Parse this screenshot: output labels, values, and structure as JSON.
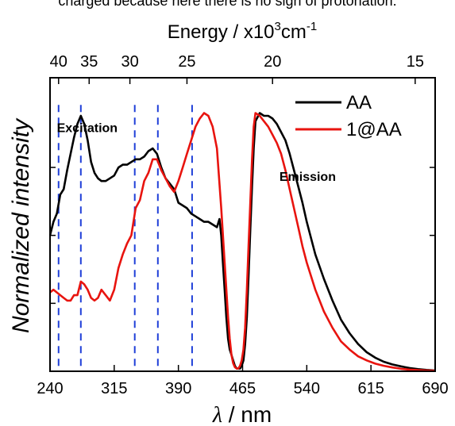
{
  "caption": "charged because here there is no sign of protonation.",
  "chart_data": {
    "type": "line",
    "xlabel_symbol": "λ",
    "xlabel_unit": " / nm",
    "ylabel": "Normalized intensity",
    "top_xlabel": "Energy / x10",
    "top_xlabel_sup1": "3",
    "top_xlabel_unit": "cm",
    "top_xlabel_sup2": "-1",
    "xlim": [
      240,
      690
    ],
    "ylim": [
      0,
      1.08
    ],
    "x_ticks": [
      240,
      315,
      390,
      465,
      540,
      615,
      690
    ],
    "top_ticks": [
      40,
      35,
      30,
      25,
      20,
      15
    ],
    "y_tick_positions": [
      0.25,
      0.5,
      0.75
    ],
    "grid": false,
    "legend_position": "top-right",
    "annotations": [
      {
        "text": "Excitation",
        "x": 248,
        "y": 0.88
      },
      {
        "text": "Emission",
        "x": 508,
        "y": 0.7
      }
    ],
    "dashed_lines_x": [
      250,
      276,
      339,
      366,
      406
    ],
    "dashed_color": "#1f3fd8",
    "series": [
      {
        "name": "AA",
        "color": "#000000",
        "x": [
          240,
          244,
          248,
          252,
          256,
          260,
          264,
          268,
          272,
          276,
          280,
          284,
          288,
          292,
          296,
          300,
          305,
          310,
          315,
          320,
          325,
          330,
          335,
          340,
          345,
          350,
          355,
          360,
          365,
          370,
          375,
          380,
          385,
          390,
          395,
          400,
          405,
          410,
          415,
          420,
          425,
          430,
          435,
          438,
          440,
          442,
          444,
          446,
          448,
          450,
          452,
          454,
          456,
          458,
          460,
          462,
          464,
          466,
          468,
          470,
          472,
          474,
          476,
          478,
          480,
          485,
          490,
          495,
          500,
          505,
          510,
          515,
          520,
          525,
          530,
          535,
          540,
          550,
          560,
          570,
          580,
          590,
          600,
          610,
          620,
          630,
          640,
          650,
          660,
          670,
          680,
          690
        ],
        "y": [
          0.5,
          0.55,
          0.58,
          0.65,
          0.67,
          0.74,
          0.8,
          0.86,
          0.91,
          0.94,
          0.91,
          0.85,
          0.77,
          0.73,
          0.71,
          0.7,
          0.7,
          0.71,
          0.72,
          0.75,
          0.76,
          0.76,
          0.77,
          0.78,
          0.78,
          0.79,
          0.81,
          0.82,
          0.8,
          0.75,
          0.71,
          0.69,
          0.67,
          0.62,
          0.61,
          0.6,
          0.58,
          0.57,
          0.56,
          0.55,
          0.55,
          0.54,
          0.53,
          0.56,
          0.5,
          0.4,
          0.3,
          0.2,
          0.12,
          0.08,
          0.06,
          0.04,
          0.02,
          0.01,
          0.01,
          0.01,
          0.02,
          0.04,
          0.1,
          0.2,
          0.35,
          0.52,
          0.68,
          0.82,
          0.92,
          0.95,
          0.94,
          0.94,
          0.93,
          0.91,
          0.88,
          0.85,
          0.8,
          0.74,
          0.68,
          0.62,
          0.55,
          0.43,
          0.34,
          0.26,
          0.19,
          0.14,
          0.1,
          0.07,
          0.05,
          0.035,
          0.025,
          0.018,
          0.012,
          0.008,
          0.005,
          0.003
        ]
      },
      {
        "name": "1@AA",
        "color": "#e8140f",
        "x": [
          240,
          244,
          248,
          252,
          256,
          260,
          264,
          268,
          272,
          276,
          280,
          284,
          288,
          292,
          296,
          300,
          305,
          310,
          315,
          320,
          325,
          330,
          335,
          340,
          345,
          350,
          355,
          360,
          365,
          370,
          375,
          380,
          385,
          390,
          395,
          400,
          405,
          410,
          415,
          420,
          425,
          430,
          435,
          440,
          444,
          448,
          450,
          452,
          454,
          456,
          458,
          460,
          462,
          464,
          466,
          468,
          470,
          472,
          474,
          476,
          478,
          480,
          485,
          490,
          495,
          500,
          505,
          510,
          515,
          520,
          525,
          530,
          535,
          540,
          550,
          560,
          570,
          580,
          590,
          600,
          610,
          620,
          630,
          640,
          650,
          660,
          670,
          680,
          690
        ],
        "y": [
          0.29,
          0.3,
          0.29,
          0.28,
          0.27,
          0.26,
          0.26,
          0.28,
          0.28,
          0.33,
          0.32,
          0.3,
          0.27,
          0.26,
          0.27,
          0.3,
          0.28,
          0.26,
          0.3,
          0.38,
          0.43,
          0.47,
          0.5,
          0.6,
          0.63,
          0.7,
          0.73,
          0.78,
          0.78,
          0.74,
          0.71,
          0.68,
          0.66,
          0.7,
          0.75,
          0.8,
          0.85,
          0.9,
          0.93,
          0.95,
          0.94,
          0.9,
          0.82,
          0.6,
          0.4,
          0.2,
          0.12,
          0.06,
          0.03,
          0.015,
          0.01,
          0.01,
          0.02,
          0.04,
          0.08,
          0.16,
          0.3,
          0.46,
          0.62,
          0.78,
          0.9,
          0.95,
          0.94,
          0.92,
          0.9,
          0.87,
          0.84,
          0.8,
          0.74,
          0.67,
          0.6,
          0.53,
          0.46,
          0.4,
          0.3,
          0.22,
          0.16,
          0.11,
          0.08,
          0.055,
          0.04,
          0.028,
          0.02,
          0.014,
          0.009,
          0.006,
          0.004,
          0.003,
          0.002
        ]
      }
    ]
  }
}
